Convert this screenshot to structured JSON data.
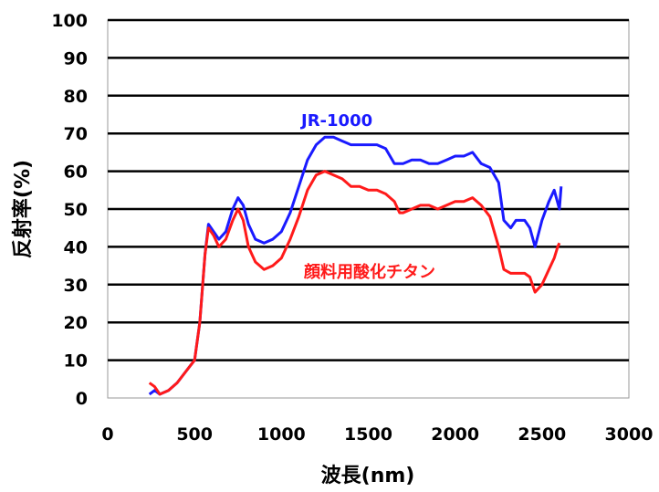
{
  "chart_data": {
    "type": "line",
    "xlabel": "波長(nm)",
    "ylabel": "反射率(%)",
    "xlim": [
      0,
      3000
    ],
    "ylim": [
      0,
      100
    ],
    "x_ticks": [
      "0",
      "500",
      "1000",
      "1500",
      "2000",
      "2500",
      "3000"
    ],
    "y_ticks": [
      "0",
      "10",
      "20",
      "30",
      "40",
      "50",
      "60",
      "70",
      "80",
      "90",
      "100"
    ],
    "grid": "horizontal",
    "series": [
      {
        "name": "JR-1000",
        "color": "#1a1aff",
        "points": [
          [
            240,
            1
          ],
          [
            270,
            2
          ],
          [
            300,
            1
          ],
          [
            350,
            2
          ],
          [
            400,
            4
          ],
          [
            450,
            7
          ],
          [
            500,
            10
          ],
          [
            530,
            20
          ],
          [
            560,
            38
          ],
          [
            580,
            46
          ],
          [
            610,
            44
          ],
          [
            640,
            42
          ],
          [
            680,
            44
          ],
          [
            720,
            50
          ],
          [
            750,
            53
          ],
          [
            780,
            51
          ],
          [
            810,
            46
          ],
          [
            850,
            42
          ],
          [
            900,
            41
          ],
          [
            950,
            42
          ],
          [
            1000,
            44
          ],
          [
            1050,
            49
          ],
          [
            1100,
            56
          ],
          [
            1150,
            63
          ],
          [
            1200,
            67
          ],
          [
            1250,
            69
          ],
          [
            1300,
            69
          ],
          [
            1350,
            68
          ],
          [
            1400,
            67
          ],
          [
            1450,
            67
          ],
          [
            1500,
            67
          ],
          [
            1550,
            67
          ],
          [
            1600,
            66
          ],
          [
            1650,
            62
          ],
          [
            1700,
            62
          ],
          [
            1750,
            63
          ],
          [
            1800,
            63
          ],
          [
            1850,
            62
          ],
          [
            1900,
            62
          ],
          [
            1950,
            63
          ],
          [
            2000,
            64
          ],
          [
            2050,
            64
          ],
          [
            2100,
            65
          ],
          [
            2150,
            62
          ],
          [
            2200,
            61
          ],
          [
            2250,
            57
          ],
          [
            2280,
            47
          ],
          [
            2320,
            45
          ],
          [
            2350,
            47
          ],
          [
            2400,
            47
          ],
          [
            2430,
            45
          ],
          [
            2460,
            40
          ],
          [
            2500,
            47
          ],
          [
            2540,
            52
          ],
          [
            2570,
            55
          ],
          [
            2600,
            50
          ],
          [
            2610,
            56
          ]
        ]
      },
      {
        "name": "顔料用酸化チタン",
        "color": "#ff1a1a",
        "points": [
          [
            240,
            4
          ],
          [
            270,
            3
          ],
          [
            300,
            1
          ],
          [
            350,
            2
          ],
          [
            400,
            4
          ],
          [
            450,
            7
          ],
          [
            500,
            10
          ],
          [
            530,
            20
          ],
          [
            560,
            38
          ],
          [
            580,
            45
          ],
          [
            610,
            43
          ],
          [
            640,
            40
          ],
          [
            680,
            42
          ],
          [
            720,
            47
          ],
          [
            750,
            50
          ],
          [
            780,
            47
          ],
          [
            810,
            40
          ],
          [
            850,
            36
          ],
          [
            900,
            34
          ],
          [
            950,
            35
          ],
          [
            1000,
            37
          ],
          [
            1050,
            42
          ],
          [
            1100,
            48
          ],
          [
            1150,
            55
          ],
          [
            1200,
            59
          ],
          [
            1250,
            60
          ],
          [
            1300,
            59
          ],
          [
            1350,
            58
          ],
          [
            1400,
            56
          ],
          [
            1450,
            56
          ],
          [
            1500,
            55
          ],
          [
            1550,
            55
          ],
          [
            1600,
            54
          ],
          [
            1650,
            52
          ],
          [
            1680,
            49
          ],
          [
            1700,
            49
          ],
          [
            1750,
            50
          ],
          [
            1800,
            51
          ],
          [
            1850,
            51
          ],
          [
            1900,
            50
          ],
          [
            1950,
            51
          ],
          [
            2000,
            52
          ],
          [
            2050,
            52
          ],
          [
            2100,
            53
          ],
          [
            2150,
            51
          ],
          [
            2200,
            48
          ],
          [
            2250,
            40
          ],
          [
            2280,
            34
          ],
          [
            2320,
            33
          ],
          [
            2350,
            33
          ],
          [
            2400,
            33
          ],
          [
            2430,
            32
          ],
          [
            2460,
            28
          ],
          [
            2500,
            30
          ],
          [
            2540,
            34
          ],
          [
            2570,
            37
          ],
          [
            2590,
            40
          ],
          [
            2600,
            41
          ]
        ]
      }
    ]
  }
}
